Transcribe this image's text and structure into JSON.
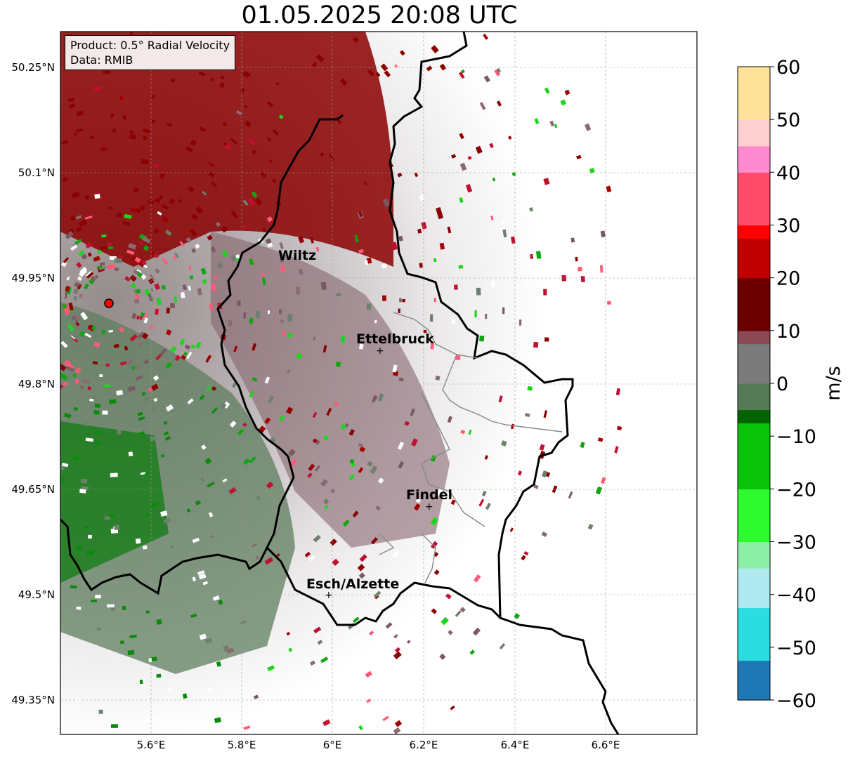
{
  "title": "01.05.2025 20:08 UTC",
  "info": {
    "product": "Product: 0.5° Radial Velocity",
    "source": "Data: RMIB"
  },
  "map": {
    "x_ticks": [
      "5.6°E",
      "5.8°E",
      "6°E",
      "6.2°E",
      "6.4°E",
      "6.6°E"
    ],
    "y_ticks": [
      "50.25°N",
      "50.1°N",
      "49.95°N",
      "49.8°N",
      "49.65°N",
      "49.5°N",
      "49.35°N"
    ],
    "cities": [
      {
        "name": "Wiltz"
      },
      {
        "name": "Ettelbruck"
      },
      {
        "name": "Findel"
      },
      {
        "name": "Esch/Alzette"
      }
    ],
    "radar_site_color": "#ff0000"
  },
  "colorbar": {
    "unit": "m/s",
    "ticks": [
      "60",
      "50",
      "40",
      "30",
      "20",
      "10",
      "0",
      "−10",
      "−20",
      "−30",
      "−40",
      "−50",
      "−60"
    ],
    "range": [
      -60,
      60
    ],
    "stops": [
      {
        "v": -60,
        "c": "#1f78b4"
      },
      {
        "v": -52,
        "c": "#2bdde0"
      },
      {
        "v": -42,
        "c": "#aeeaef"
      },
      {
        "v": -35,
        "c": "#8ef0a8"
      },
      {
        "v": -30,
        "c": "#2dfb2d"
      },
      {
        "v": -20,
        "c": "#0bc20b"
      },
      {
        "v": -8,
        "c": "#006400"
      },
      {
        "v": -6,
        "c": "#557a55"
      },
      {
        "v": 0,
        "c": "#7b7b7b"
      },
      {
        "v": 8,
        "c": "#8a4a55"
      },
      {
        "v": 9,
        "c": "#6b0000"
      },
      {
        "v": 20,
        "c": "#c00000"
      },
      {
        "v": 28,
        "c": "#ff0000"
      },
      {
        "v": 30,
        "c": "#ff4a6a"
      },
      {
        "v": 40,
        "c": "#ff8ad0"
      },
      {
        "v": 46,
        "c": "#ffcfd0"
      },
      {
        "v": 50,
        "c": "#ffe29a"
      },
      {
        "v": 60,
        "c": "#ff9a50"
      }
    ]
  }
}
